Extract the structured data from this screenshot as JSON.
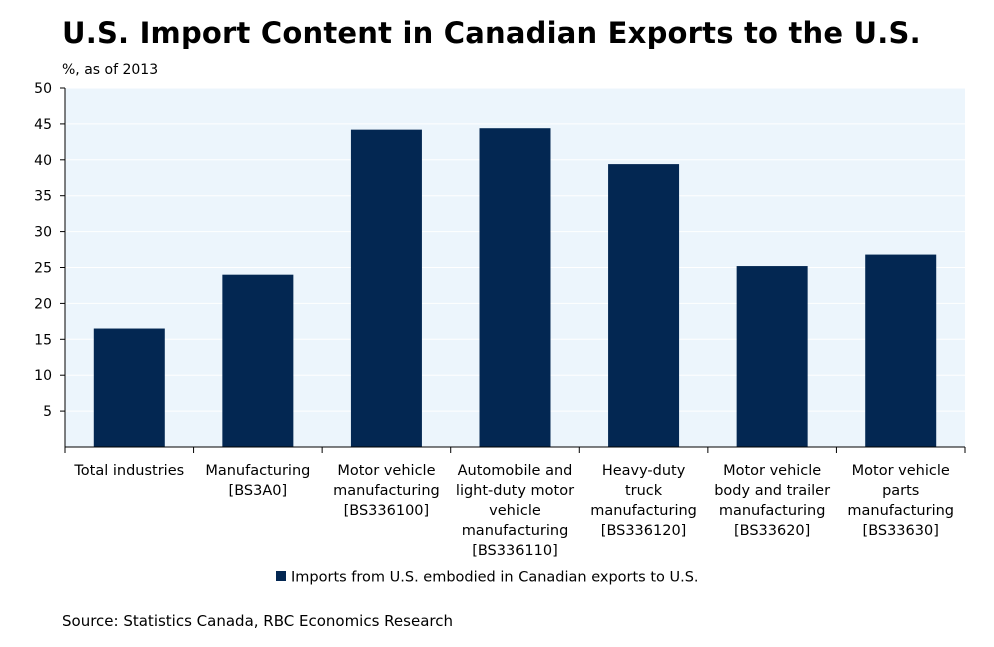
{
  "colors": {
    "bar": "#032752",
    "plot_background": "#ecf5fc",
    "gridline": "#ffffff",
    "axis": "#000000",
    "text": "#000000"
  },
  "chart_data": {
    "type": "bar",
    "title": "U.S. Import Content in Canadian Exports to the U.S.",
    "subtitle": "%, as of 2013",
    "xlabel": "",
    "ylabel": "%",
    "ylim": [
      0,
      50
    ],
    "yticks": [
      5,
      10,
      15,
      20,
      25,
      30,
      35,
      40,
      45,
      50
    ],
    "grid": true,
    "categories": [
      [
        "Total industries"
      ],
      [
        "Manufacturing",
        "[BS3A0]"
      ],
      [
        "Motor vehicle",
        "manufacturing",
        "[BS336100]"
      ],
      [
        "Automobile and",
        "light-duty motor",
        "vehicle",
        "manufacturing",
        "[BS336110]"
      ],
      [
        "Heavy-duty",
        "truck",
        "manufacturing",
        "[BS336120]"
      ],
      [
        "Motor vehicle",
        "body and trailer",
        "manufacturing",
        "[BS33620]"
      ],
      [
        "Motor vehicle",
        "parts",
        "manufacturing",
        "[BS33630]"
      ]
    ],
    "series": [
      {
        "name": "Imports from U.S. embodied in Canadian exports to U.S.",
        "values": [
          16.5,
          24.0,
          44.2,
          44.4,
          39.4,
          25.2,
          26.8
        ]
      }
    ],
    "legend": {
      "position": "bottom-center",
      "label": "Imports from U.S. embodied in Canadian exports to U.S."
    },
    "source": "Source: Statistics Canada, RBC Economics Research"
  }
}
